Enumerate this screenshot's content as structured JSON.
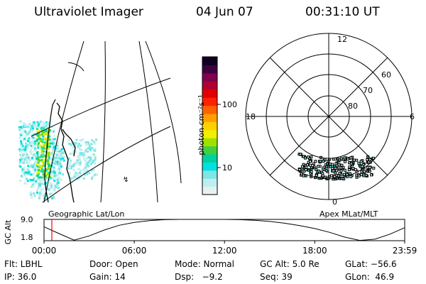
{
  "header": {
    "title": "Ultraviolet Imager",
    "date": "04 Jun 07",
    "time": "00:31:10 UT"
  },
  "geo_panel": {
    "caption": "Geographic Lat/Lon"
  },
  "polar_panel": {
    "caption": "Apex MLat/MLT",
    "mlt_labels": [
      "12",
      "18",
      "6",
      "0"
    ],
    "mlat_labels": [
      "60",
      "70",
      "80"
    ]
  },
  "colorbar": {
    "label": "photon cm⁻²s⁻¹",
    "tick_labels": [
      "100",
      "10"
    ],
    "scale": "log",
    "colors": [
      "#e6f2f2",
      "#bfeeee",
      "#7fe5e5",
      "#00e0e0",
      "#00d0a0",
      "#40d040",
      "#a0e000",
      "#f0f000",
      "#ffd000",
      "#ffa000",
      "#ff6000",
      "#ff2000",
      "#e00000",
      "#b00030",
      "#800050",
      "#400040",
      "#100020"
    ]
  },
  "chart_data": {
    "type": "line",
    "title": "GC Alt",
    "ylabel": "GC Alt",
    "yticks": [
      "9.0",
      "1.8"
    ],
    "ylim": [
      1.8,
      9.0
    ],
    "x_ticks": [
      "00:00",
      "06:00",
      "12:00",
      "18:00",
      "23:59"
    ],
    "x_hours": [
      0,
      1,
      2,
      3,
      4,
      5,
      6,
      7,
      8,
      9,
      10,
      11,
      12,
      13,
      14,
      15,
      16,
      17,
      18,
      19,
      20,
      21,
      22,
      23,
      23.98
    ],
    "series": [
      {
        "values": [
          6.5,
          4.2,
          2.0,
          3.4,
          5.4,
          7.0,
          8.0,
          8.6,
          8.9,
          9.0,
          9.0,
          9.0,
          9.0,
          8.9,
          8.7,
          8.3,
          7.7,
          6.9,
          5.9,
          4.6,
          3.0,
          1.9,
          2.3,
          4.0,
          6.2
        ]
      }
    ],
    "current_time_hours": 0.52,
    "current_time_color": "#ff0000"
  },
  "info": {
    "row1": [
      "Flt: LBHL",
      "Door: Open",
      "Mode: Normal",
      "GC Alt: 5.0 Re",
      "GLat: −56.6"
    ],
    "row2": [
      "IP: 36.0",
      "Gain: 14",
      "Dsp:   −9.2",
      "Seq: 39",
      "GLon:  46.9"
    ]
  }
}
